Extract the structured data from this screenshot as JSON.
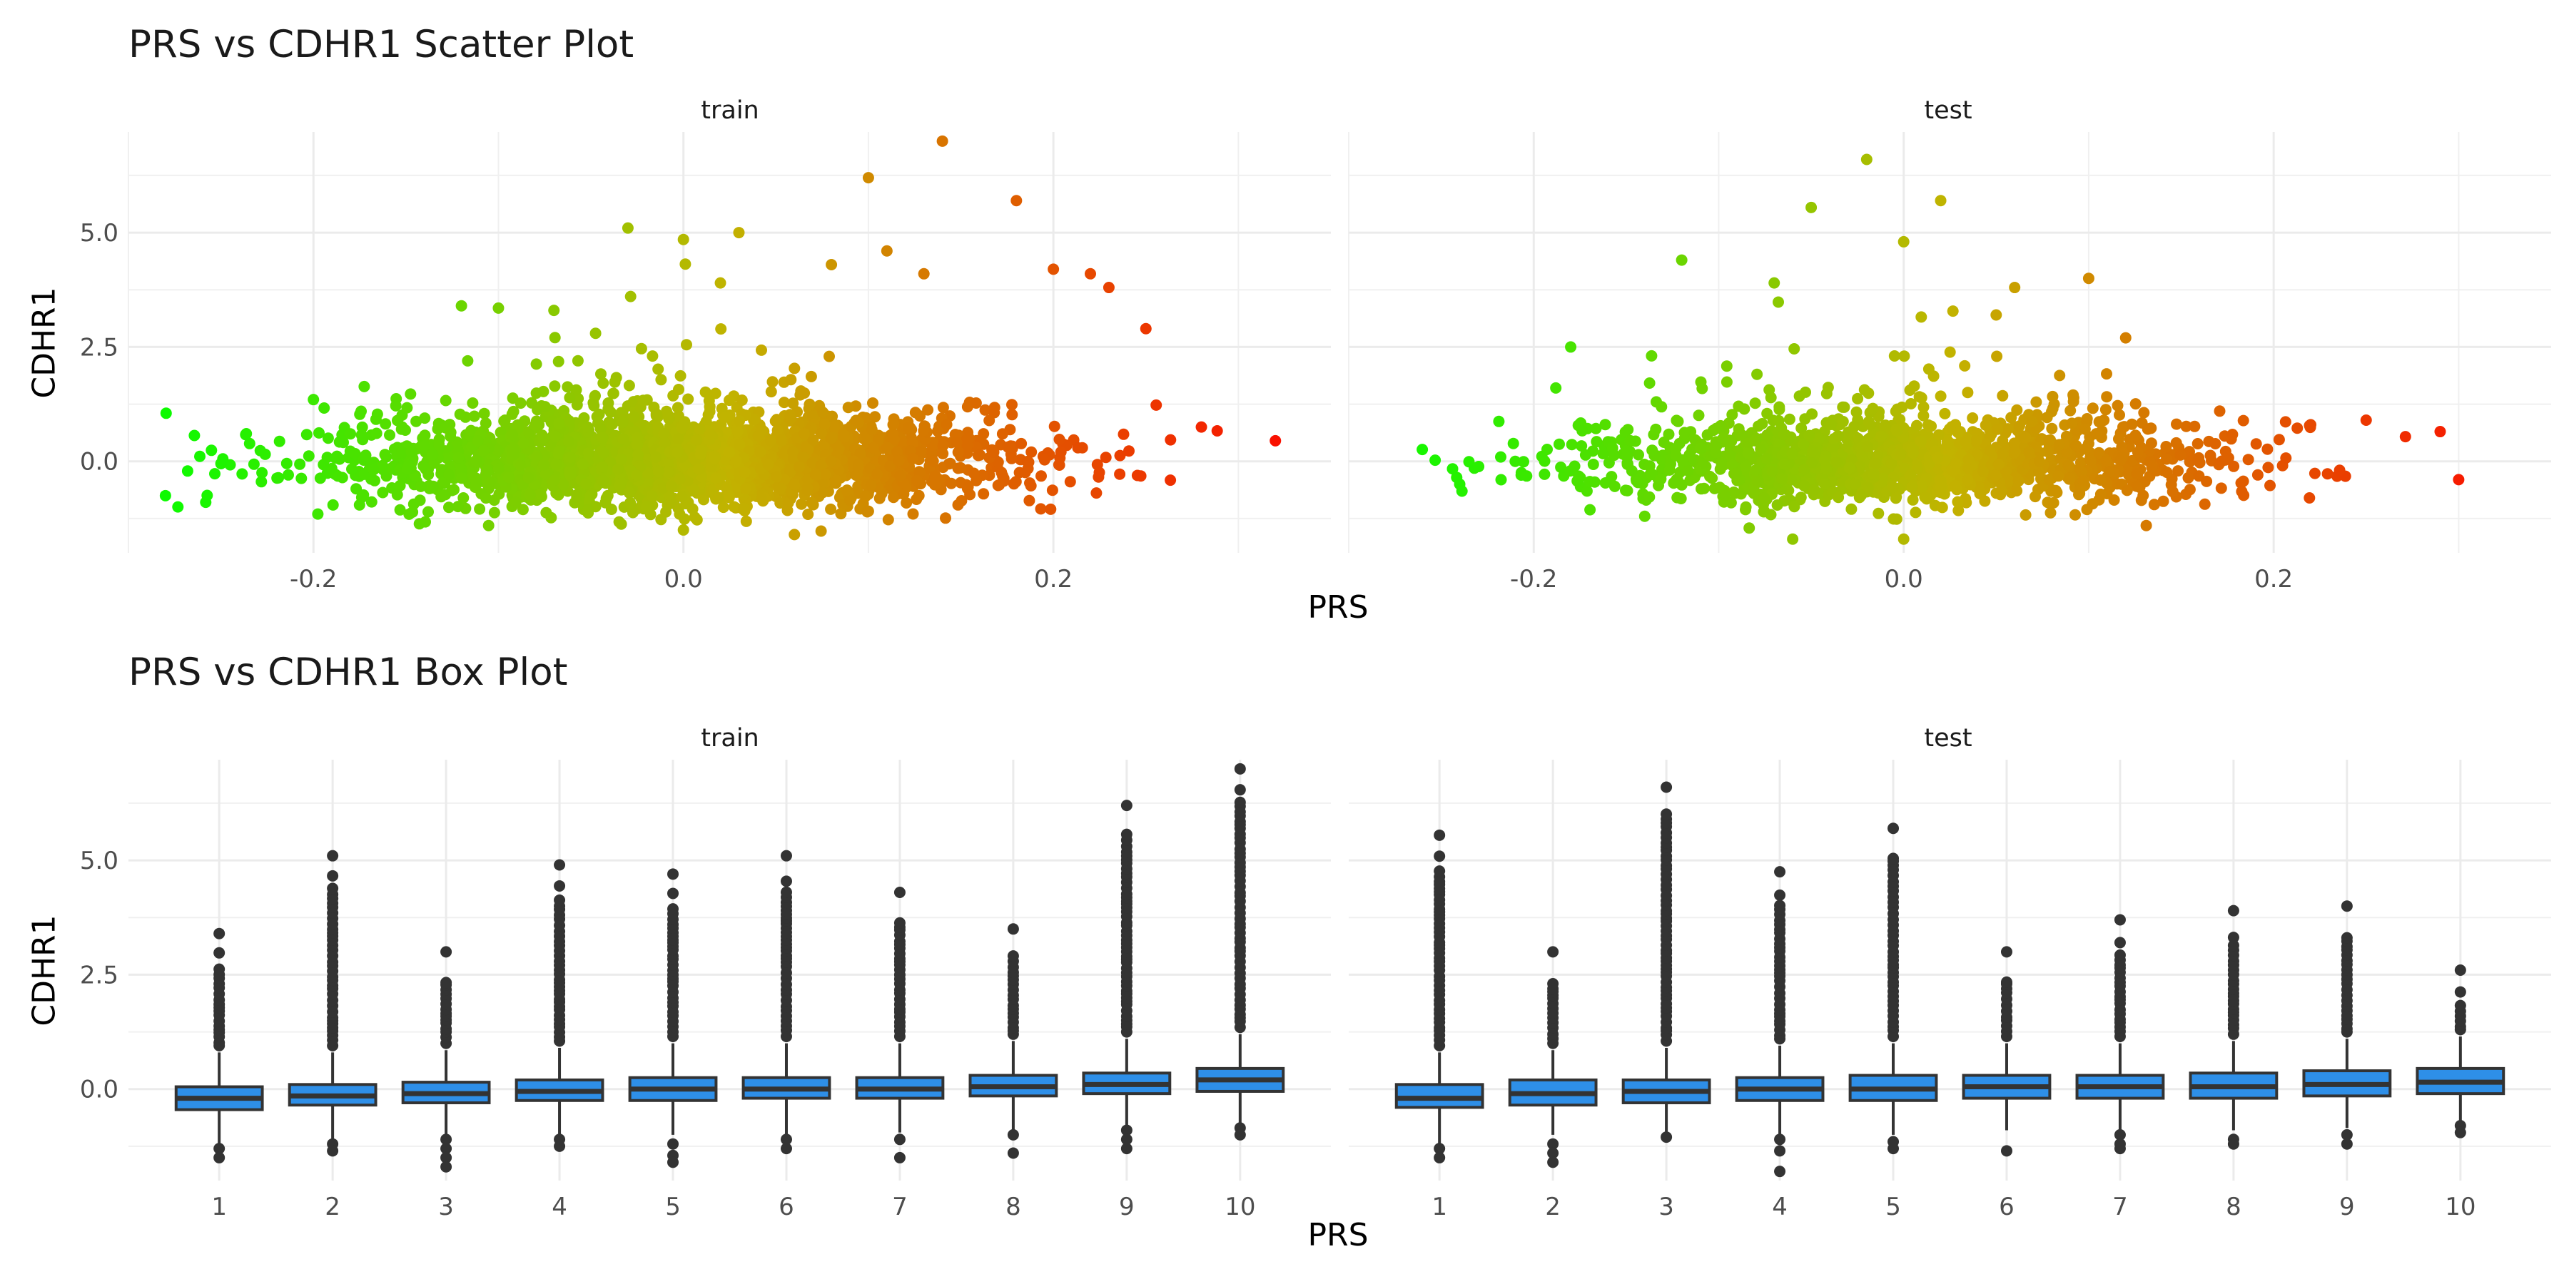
{
  "chart_data": [
    {
      "type": "scatter",
      "title": "PRS vs CDHR1 Scatter Plot",
      "xlabel": "PRS",
      "ylabel": "CDHR1",
      "facets": [
        "train",
        "test"
      ],
      "xticks": [
        -0.2,
        0.0,
        0.2
      ],
      "xtick_labels": [
        "-0.2",
        "0.0",
        "0.2"
      ],
      "yticks": [
        0.0,
        2.5,
        5.0
      ],
      "ytick_labels": [
        "0.0",
        "2.5",
        "5.0"
      ],
      "xlim": [
        -0.3,
        0.35
      ],
      "ylim": [
        -2.0,
        7.2
      ],
      "color_scale": {
        "low": "#00ff00",
        "mid": "#c2b300",
        "high": "#ff0000",
        "variable": "PRS"
      },
      "grid": true,
      "panels": {
        "train": {
          "outliers": [
            [
              -0.28,
              -0.75
            ],
            [
              -0.25,
              -0.05
            ],
            [
              -0.2,
              1.35
            ],
            [
              -0.18,
              0.6
            ],
            [
              -0.12,
              3.4
            ],
            [
              -0.03,
              5.1
            ],
            [
              0.0,
              4.85
            ],
            [
              0.02,
              3.9
            ],
            [
              0.03,
              5.0
            ],
            [
              0.1,
              6.2
            ],
            [
              0.14,
              7.0
            ],
            [
              0.18,
              5.7
            ],
            [
              0.2,
              4.2
            ],
            [
              0.22,
              4.1
            ],
            [
              0.23,
              3.8
            ],
            [
              0.25,
              2.9
            ],
            [
              0.11,
              4.6
            ],
            [
              0.13,
              4.1
            ],
            [
              0.28,
              0.75
            ],
            [
              0.32,
              0.45
            ],
            [
              0.06,
              -1.6
            ],
            [
              0.0,
              -1.5
            ],
            [
              -0.07,
              3.3
            ],
            [
              -0.1,
              3.35
            ],
            [
              0.08,
              4.3
            ]
          ]
        },
        "test": {
          "outliers": [
            [
              -0.24,
              -0.5
            ],
            [
              -0.21,
              0.0
            ],
            [
              -0.18,
              2.5
            ],
            [
              -0.12,
              4.4
            ],
            [
              -0.07,
              3.9
            ],
            [
              -0.05,
              5.55
            ],
            [
              -0.02,
              6.6
            ],
            [
              0.0,
              4.8
            ],
            [
              0.02,
              5.7
            ],
            [
              0.06,
              3.8
            ],
            [
              0.1,
              4.0
            ],
            [
              0.12,
              2.7
            ],
            [
              0.22,
              0.8
            ],
            [
              0.25,
              0.9
            ],
            [
              0.29,
              0.65
            ],
            [
              0.3,
              -0.4
            ],
            [
              -0.06,
              -1.7
            ],
            [
              0.0,
              -1.7
            ],
            [
              -0.14,
              -1.2
            ],
            [
              0.05,
              3.2
            ]
          ]
        }
      }
    },
    {
      "type": "box",
      "title": "PRS vs CDHR1 Box Plot",
      "xlabel": "PRS",
      "ylabel": "CDHR1",
      "facets": [
        "train",
        "test"
      ],
      "categories": [
        "1",
        "2",
        "3",
        "4",
        "5",
        "6",
        "7",
        "8",
        "9",
        "10"
      ],
      "yticks": [
        0.0,
        2.5,
        5.0
      ],
      "ytick_labels": [
        "0.0",
        "2.5",
        "5.0"
      ],
      "ylim": [
        -2.0,
        7.2
      ],
      "box_color": "#2e8fe8",
      "grid": true,
      "panels": {
        "train": {
          "boxes": [
            {
              "q1": -0.45,
              "median": -0.2,
              "q3": 0.05,
              "lo": -1.2,
              "hi": 0.8,
              "out_low": [
                -1.3,
                -1.5
              ],
              "out_high_max": 3.4
            },
            {
              "q1": -0.35,
              "median": -0.15,
              "q3": 0.1,
              "lo": -1.1,
              "hi": 0.8,
              "out_low": [
                -1.2,
                -1.35
              ],
              "out_high_max": 5.1
            },
            {
              "q1": -0.3,
              "median": -0.1,
              "q3": 0.15,
              "lo": -1.0,
              "hi": 0.85,
              "out_low": [
                -1.1,
                -1.3,
                -1.5,
                -1.7
              ],
              "out_high_max": 3.0
            },
            {
              "q1": -0.25,
              "median": -0.05,
              "q3": 0.2,
              "lo": -1.0,
              "hi": 0.9,
              "out_low": [
                -1.1,
                -1.25
              ],
              "out_high_max": 4.9
            },
            {
              "q1": -0.25,
              "median": 0.0,
              "q3": 0.25,
              "lo": -1.0,
              "hi": 1.0,
              "out_low": [
                -1.2,
                -1.45,
                -1.6
              ],
              "out_high_max": 4.7
            },
            {
              "q1": -0.2,
              "median": 0.0,
              "q3": 0.25,
              "lo": -1.0,
              "hi": 1.0,
              "out_low": [
                -1.1,
                -1.3
              ],
              "out_high_max": 5.1
            },
            {
              "q1": -0.2,
              "median": 0.0,
              "q3": 0.25,
              "lo": -0.95,
              "hi": 1.0,
              "out_low": [
                -1.1,
                -1.5
              ],
              "out_high_max": 4.3
            },
            {
              "q1": -0.15,
              "median": 0.05,
              "q3": 0.3,
              "lo": -0.9,
              "hi": 1.05,
              "out_low": [
                -1.0,
                -1.4
              ],
              "out_high_max": 3.5
            },
            {
              "q1": -0.1,
              "median": 0.1,
              "q3": 0.35,
              "lo": -0.85,
              "hi": 1.1,
              "out_low": [
                -0.9,
                -1.1,
                -1.3
              ],
              "out_high_max": 6.2
            },
            {
              "q1": -0.05,
              "median": 0.2,
              "q3": 0.45,
              "lo": -0.75,
              "hi": 1.2,
              "out_low": [
                -0.85,
                -1.0
              ],
              "out_high_max": 7.0
            }
          ]
        },
        "test": {
          "boxes": [
            {
              "q1": -0.4,
              "median": -0.2,
              "q3": 0.1,
              "lo": -1.2,
              "hi": 0.8,
              "out_low": [
                -1.3,
                -1.5
              ],
              "out_high_max": 5.55
            },
            {
              "q1": -0.35,
              "median": -0.1,
              "q3": 0.2,
              "lo": -1.0,
              "hi": 0.85,
              "out_low": [
                -1.2,
                -1.4,
                -1.6
              ],
              "out_high_max": 3.0
            },
            {
              "q1": -0.3,
              "median": -0.05,
              "q3": 0.2,
              "lo": -1.0,
              "hi": 0.9,
              "out_low": [
                -1.05
              ],
              "out_high_max": 6.6
            },
            {
              "q1": -0.25,
              "median": 0.0,
              "q3": 0.25,
              "lo": -1.0,
              "hi": 0.95,
              "out_low": [
                -1.1,
                -1.35,
                -1.8
              ],
              "out_high_max": 4.75
            },
            {
              "q1": -0.25,
              "median": 0.0,
              "q3": 0.3,
              "lo": -1.0,
              "hi": 1.0,
              "out_low": [
                -1.15,
                -1.3
              ],
              "out_high_max": 5.7
            },
            {
              "q1": -0.2,
              "median": 0.05,
              "q3": 0.3,
              "lo": -0.9,
              "hi": 1.0,
              "out_low": [
                -1.35
              ],
              "out_high_max": 3.0
            },
            {
              "q1": -0.2,
              "median": 0.05,
              "q3": 0.3,
              "lo": -0.9,
              "hi": 1.0,
              "out_low": [
                -1.0,
                -1.2,
                -1.3
              ],
              "out_high_max": 3.7
            },
            {
              "q1": -0.2,
              "median": 0.05,
              "q3": 0.35,
              "lo": -0.9,
              "hi": 1.05,
              "out_low": [
                -1.1,
                -1.2
              ],
              "out_high_max": 3.9
            },
            {
              "q1": -0.15,
              "median": 0.1,
              "q3": 0.4,
              "lo": -0.85,
              "hi": 1.1,
              "out_low": [
                -1.0,
                -1.2
              ],
              "out_high_max": 4.0
            },
            {
              "q1": -0.1,
              "median": 0.15,
              "q3": 0.45,
              "lo": -0.75,
              "hi": 1.15,
              "out_low": [
                -0.8,
                -0.95
              ],
              "out_high_max": 2.6
            }
          ]
        }
      }
    }
  ]
}
